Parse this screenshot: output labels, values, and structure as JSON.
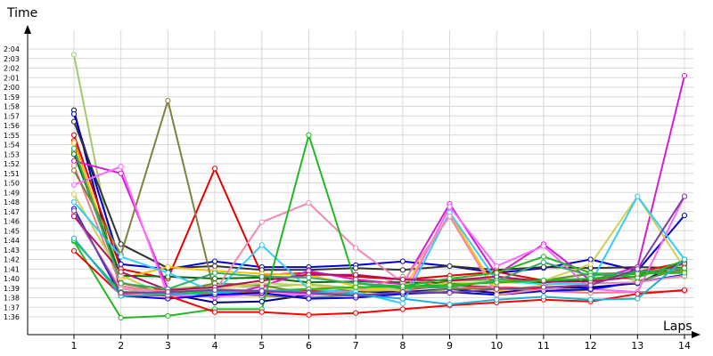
{
  "chart_data": {
    "type": "line",
    "title": "",
    "xlabel": "Laps",
    "ylabel": "Time",
    "x": [
      1,
      2,
      3,
      4,
      5,
      6,
      7,
      8,
      9,
      10,
      11,
      12,
      13,
      14
    ],
    "y_tick_labels": [
      "1:36",
      "1:37",
      "1:38",
      "1:39",
      "1:40",
      "1:41",
      "1:42",
      "1:43",
      "1:44",
      "1:45",
      "1:46",
      "1:47",
      "1:48",
      "1:49",
      "1:50",
      "1:51",
      "1:52",
      "1:53",
      "1:54",
      "1:55",
      "1:56",
      "1:57",
      "1:58",
      "1:59",
      "2:00",
      "2:01",
      "2:02",
      "2:03",
      "2:04"
    ],
    "y_unit": "seconds",
    "ylim": [
      95,
      124.5
    ],
    "grid": true,
    "legend": "none",
    "series": [
      {
        "color": "#a4c86c",
        "values": [
          123.4,
          98.6,
          98.9,
          99.3,
          99.1,
          99.4,
          99.0,
          99.1,
          99.4,
          99.6,
          99.8,
          100.6,
          99.8,
          100.2
        ]
      },
      {
        "color": "#000080",
        "values": [
          117.6,
          98.6,
          98.4,
          97.5,
          97.6,
          98.3,
          98.6,
          98.6,
          98.9,
          98.5,
          99.0,
          99.1,
          99.5,
          101.8
        ]
      },
      {
        "color": "#0000cc",
        "values": [
          117.2,
          101.5,
          101.0,
          101.8,
          101.2,
          101.2,
          101.4,
          101.8,
          101.3,
          100.6,
          101.1,
          102.0,
          100.8,
          106.6
        ]
      },
      {
        "color": "#333333",
        "values": [
          116.4,
          103.6,
          101.1,
          101.3,
          100.9,
          100.9,
          101.1,
          100.9,
          101.3,
          100.9,
          101.2,
          101.1,
          101.2,
          101.1
        ]
      },
      {
        "color": "#e30000",
        "values": [
          115.0,
          101.0,
          100.0,
          111.5,
          100.4,
          100.6,
          100.2,
          99.9,
          100.3,
          100.7,
          99.8,
          99.9,
          100.2,
          101.7
        ]
      },
      {
        "color": "#ff0000",
        "values": [
          114.4,
          99.5,
          98.7,
          98.3,
          98.6,
          98.7,
          98.8,
          98.8,
          99.3,
          99.1,
          98.9,
          99.4,
          100.7,
          101.7
        ]
      },
      {
        "color": "#ffc000",
        "values": [
          114.2,
          100.0,
          101.2,
          100.8,
          100.5,
          100.4,
          99.2,
          98.7,
          106.8,
          98.7,
          99.3,
          99.9,
          100.2,
          101.5
        ]
      },
      {
        "color": "#6b8e23",
        "values": [
          113.3,
          99.6,
          98.5,
          99.5,
          99.3,
          98.4,
          98.5,
          98.9,
          99.8,
          99.9,
          99.8,
          100.5,
          100.6,
          100.8
        ]
      },
      {
        "color": "#0a6e0a",
        "values": [
          113.0,
          100.3,
          100.2,
          100.0,
          100.1,
          99.6,
          99.7,
          99.6,
          99.5,
          99.6,
          99.6,
          99.9,
          100.6,
          101.2
        ]
      },
      {
        "color": "#d020d0",
        "values": [
          112.3,
          111.0,
          98.9,
          98.0,
          99.2,
          100.8,
          99.9,
          99.4,
          107.8,
          100.4,
          103.6,
          99.8,
          101.2,
          121.2
        ]
      },
      {
        "color": "#e77f90",
        "values": [
          111.8,
          99.2,
          98.6,
          98.9,
          98.7,
          98.4,
          98.7,
          100.2,
          99.0,
          99.1,
          98.7,
          98.5,
          98.6,
          98.7
        ]
      },
      {
        "color": "#808040",
        "values": [
          111.3,
          102.5,
          118.6,
          98.4,
          98.2,
          98.0,
          98.3,
          98.4,
          98.9,
          99.0,
          98.7,
          98.8,
          99.7,
          101.1
        ]
      },
      {
        "color": "#ff66ff",
        "values": [
          109.8,
          111.7,
          98.2,
          98.1,
          98.4,
          98.3,
          98.4,
          97.9,
          107.5,
          101.3,
          103.4,
          98.9,
          98.6,
          108.6
        ]
      },
      {
        "color": "#0000ff",
        "values": [
          107.3,
          98.2,
          97.9,
          98.3,
          98.5,
          97.9,
          98.0,
          98.4,
          98.6,
          98.3,
          98.7,
          98.9,
          99.6,
          100.4
        ]
      },
      {
        "color": "#d0d050",
        "values": [
          108.8,
          100.3,
          98.2,
          99.0,
          99.5,
          99.3,
          98.8,
          98.8,
          99.6,
          99.5,
          99.8,
          101.5,
          108.6,
          101.1
        ]
      },
      {
        "color": "#33ccff",
        "values": [
          108.0,
          102.3,
          100.6,
          98.6,
          103.5,
          98.9,
          98.6,
          97.4,
          106.9,
          99.8,
          99.4,
          99.5,
          108.6,
          102.0
        ]
      },
      {
        "color": "#f08ab0",
        "values": [
          106.7,
          98.9,
          98.7,
          98.7,
          105.9,
          107.9,
          103.2,
          99.6,
          106.5,
          98.3,
          98.9,
          99.5,
          99.6,
          100.3
        ]
      },
      {
        "color": "#b01060",
        "values": [
          106.5,
          100.7,
          98.8,
          99.1,
          99.8,
          100.4,
          100.4,
          99.9,
          99.8,
          100.2,
          99.7,
          99.7,
          100.2,
          101.6
        ]
      },
      {
        "color": "#22b822",
        "values": [
          103.9,
          95.9,
          96.1,
          96.8,
          96.8,
          115.0,
          99.5,
          99.2,
          100.0,
          100.6,
          102.3,
          100.6,
          100.1,
          101.9
        ]
      },
      {
        "color": "#33aa66",
        "values": [
          113.6,
          99.5,
          98.9,
          100.6,
          100.2,
          100.1,
          99.5,
          99.0,
          99.1,
          99.8,
          101.7,
          100.3,
          100.7,
          101.1
        ]
      },
      {
        "color": "#ff0000",
        "values": [
          102.9,
          98.3,
          98.2,
          96.5,
          96.5,
          96.2,
          96.4,
          96.8,
          97.2,
          97.5,
          97.8,
          97.6,
          98.4,
          98.8
        ]
      },
      {
        "color": "#19c019",
        "values": [
          104.0,
          98.6,
          98.4,
          98.6,
          98.7,
          98.9,
          99.1,
          99.2,
          99.3,
          99.6,
          99.8,
          100.0,
          100.5,
          100.6
        ]
      },
      {
        "color": "#20b0d0",
        "values": [
          104.2,
          98.2,
          98.3,
          98.5,
          98.8,
          98.6,
          98.3,
          97.9,
          97.3,
          97.8,
          98.1,
          97.8,
          97.9,
          102.0
        ]
      },
      {
        "color": "#7b3fa0",
        "values": [
          107.1,
          98.5,
          98.6,
          98.8,
          98.7,
          98.5,
          98.2,
          98.6,
          98.5,
          98.9,
          99.1,
          99.3,
          101.0,
          108.6
        ]
      }
    ]
  }
}
